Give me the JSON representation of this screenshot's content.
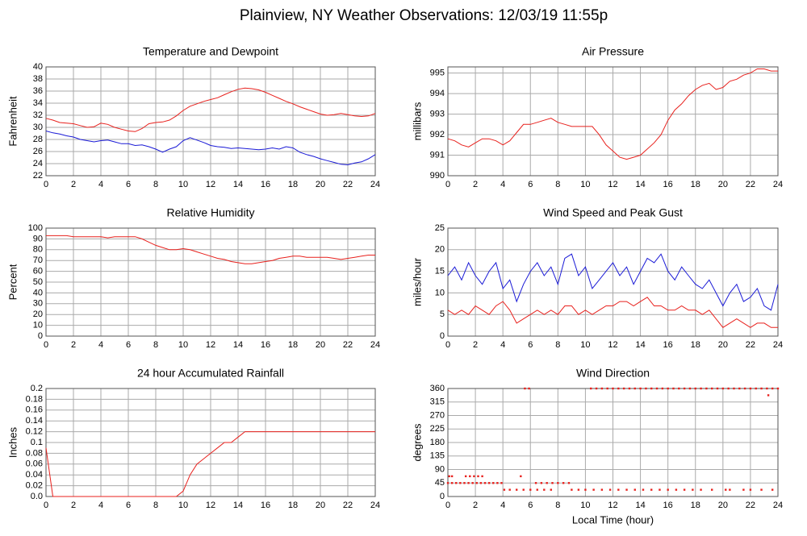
{
  "title": "Plainview, NY Weather Observations: 12/03/19 11:55p",
  "chart_data": [
    {
      "type": "line",
      "title": "Temperature and Dewpoint",
      "ylabel": "Fahrenheit",
      "xlim": [
        0,
        24
      ],
      "xticks": [
        0,
        2,
        4,
        6,
        8,
        10,
        12,
        14,
        16,
        18,
        20,
        22,
        24
      ],
      "ylim": [
        22,
        40
      ],
      "yticks": [
        22,
        24,
        26,
        28,
        30,
        32,
        34,
        36,
        38,
        40
      ],
      "grid": true,
      "x": [
        0,
        0.5,
        1,
        1.5,
        2,
        2.5,
        3,
        3.5,
        4,
        4.5,
        5,
        5.5,
        6,
        6.5,
        7,
        7.5,
        8,
        8.5,
        9,
        9.5,
        10,
        10.5,
        11,
        11.5,
        12,
        12.5,
        13,
        13.5,
        14,
        14.5,
        15,
        15.5,
        16,
        16.5,
        17,
        17.5,
        18,
        18.5,
        19,
        19.5,
        20,
        20.5,
        21,
        21.5,
        22,
        22.5,
        23,
        23.5,
        24
      ],
      "series": [
        {
          "name": "Temperature",
          "color": "#e8211d",
          "values": [
            31.5,
            31.2,
            30.8,
            30.7,
            30.6,
            30.3,
            30.0,
            30.1,
            30.7,
            30.5,
            30.0,
            29.7,
            29.4,
            29.3,
            29.8,
            30.6,
            30.8,
            30.9,
            31.2,
            31.9,
            32.8,
            33.5,
            33.9,
            34.3,
            34.6,
            34.9,
            35.4,
            35.9,
            36.3,
            36.5,
            36.4,
            36.2,
            35.8,
            35.3,
            34.8,
            34.3,
            33.9,
            33.4,
            33.0,
            32.6,
            32.2,
            32.0,
            32.1,
            32.3,
            32.1,
            31.9,
            31.8,
            31.9,
            32.3
          ]
        },
        {
          "name": "Dewpoint",
          "color": "#1a1ad6",
          "values": [
            29.4,
            29.1,
            28.9,
            28.6,
            28.4,
            28.0,
            27.8,
            27.6,
            27.8,
            27.9,
            27.6,
            27.3,
            27.3,
            27.0,
            27.1,
            26.8,
            26.4,
            25.9,
            26.4,
            26.8,
            27.8,
            28.3,
            27.9,
            27.5,
            27.0,
            26.8,
            26.7,
            26.5,
            26.6,
            26.5,
            26.4,
            26.3,
            26.4,
            26.6,
            26.4,
            26.8,
            26.6,
            25.9,
            25.5,
            25.2,
            24.8,
            24.5,
            24.2,
            23.9,
            23.8,
            24.1,
            24.3,
            24.8,
            25.5
          ]
        }
      ]
    },
    {
      "type": "line",
      "title": "Air Pressure",
      "ylabel": "millibars",
      "xlim": [
        0,
        24
      ],
      "xticks": [
        0,
        2,
        4,
        6,
        8,
        10,
        12,
        14,
        16,
        18,
        20,
        22,
        24
      ],
      "ylim": [
        990,
        995.3
      ],
      "yticks": [
        990,
        991,
        992,
        993,
        994,
        995
      ],
      "grid": true,
      "x": [
        0,
        0.5,
        1,
        1.5,
        2,
        2.5,
        3,
        3.5,
        4,
        4.5,
        5,
        5.5,
        6,
        6.5,
        7,
        7.5,
        8,
        8.5,
        9,
        9.5,
        10,
        10.5,
        11,
        11.5,
        12,
        12.5,
        13,
        13.5,
        14,
        14.5,
        15,
        15.5,
        16,
        16.5,
        17,
        17.5,
        18,
        18.5,
        19,
        19.5,
        20,
        20.5,
        21,
        21.5,
        22,
        22.5,
        23,
        23.5,
        24
      ],
      "series": [
        {
          "name": "Pressure",
          "color": "#e8211d",
          "values": [
            991.8,
            991.7,
            991.5,
            991.4,
            991.6,
            991.8,
            991.8,
            991.7,
            991.5,
            991.7,
            992.1,
            992.5,
            992.5,
            992.6,
            992.7,
            992.8,
            992.6,
            992.5,
            992.4,
            992.4,
            992.4,
            992.4,
            992.0,
            991.5,
            991.2,
            990.9,
            990.8,
            990.9,
            991.0,
            991.3,
            991.6,
            992.0,
            992.7,
            993.2,
            993.5,
            993.9,
            994.2,
            994.4,
            994.5,
            994.2,
            994.3,
            994.6,
            994.7,
            994.9,
            995.0,
            995.2,
            995.2,
            995.1,
            995.1
          ]
        }
      ]
    },
    {
      "type": "line",
      "title": "Relative Humidity",
      "ylabel": "Percent",
      "xlim": [
        0,
        24
      ],
      "xticks": [
        0,
        2,
        4,
        6,
        8,
        10,
        12,
        14,
        16,
        18,
        20,
        22,
        24
      ],
      "ylim": [
        0,
        100
      ],
      "yticks": [
        0,
        10,
        20,
        30,
        40,
        50,
        60,
        70,
        80,
        90,
        100
      ],
      "grid": true,
      "x": [
        0,
        0.5,
        1,
        1.5,
        2,
        2.5,
        3,
        3.5,
        4,
        4.5,
        5,
        5.5,
        6,
        6.5,
        7,
        7.5,
        8,
        8.5,
        9,
        9.5,
        10,
        10.5,
        11,
        11.5,
        12,
        12.5,
        13,
        13.5,
        14,
        14.5,
        15,
        15.5,
        16,
        16.5,
        17,
        17.5,
        18,
        18.5,
        19,
        19.5,
        20,
        20.5,
        21,
        21.5,
        22,
        22.5,
        23,
        23.5,
        24
      ],
      "series": [
        {
          "name": "Humidity",
          "color": "#e8211d",
          "values": [
            93,
            93,
            93,
            93,
            92,
            92,
            92,
            92,
            92,
            91,
            92,
            92,
            92,
            92,
            90,
            87,
            84,
            82,
            80,
            80,
            81,
            80,
            78,
            76,
            74,
            72,
            71,
            69,
            68,
            67,
            67,
            68,
            69,
            70,
            72,
            73,
            74,
            74,
            73,
            73,
            73,
            73,
            72,
            71,
            72,
            73,
            74,
            75,
            75
          ]
        }
      ]
    },
    {
      "type": "line",
      "title": "Wind Speed and Peak Gust",
      "ylabel": "miles/hour",
      "xlim": [
        0,
        24
      ],
      "xticks": [
        0,
        2,
        4,
        6,
        8,
        10,
        12,
        14,
        16,
        18,
        20,
        22,
        24
      ],
      "ylim": [
        0,
        25
      ],
      "yticks": [
        0,
        5,
        10,
        15,
        20,
        25
      ],
      "grid": true,
      "x": [
        0,
        0.5,
        1,
        1.5,
        2,
        2.5,
        3,
        3.5,
        4,
        4.5,
        5,
        5.5,
        6,
        6.5,
        7,
        7.5,
        8,
        8.5,
        9,
        9.5,
        10,
        10.5,
        11,
        11.5,
        12,
        12.5,
        13,
        13.5,
        14,
        14.5,
        15,
        15.5,
        16,
        16.5,
        17,
        17.5,
        18,
        18.5,
        19,
        19.5,
        20,
        20.5,
        21,
        21.5,
        22,
        22.5,
        23,
        23.5,
        24
      ],
      "series": [
        {
          "name": "Peak Gust",
          "color": "#1a1ad6",
          "values": [
            14,
            16,
            13,
            17,
            14,
            12,
            15,
            17,
            11,
            13,
            8,
            12,
            15,
            17,
            14,
            16,
            12,
            18,
            19,
            14,
            16,
            11,
            13,
            15,
            17,
            14,
            16,
            12,
            15,
            18,
            17,
            19,
            15,
            13,
            16,
            14,
            12,
            11,
            13,
            10,
            7,
            10,
            12,
            8,
            9,
            11,
            7,
            6,
            12
          ]
        },
        {
          "name": "Wind Speed",
          "color": "#e8211d",
          "values": [
            6,
            5,
            6,
            5,
            7,
            6,
            5,
            7,
            8,
            6,
            3,
            4,
            5,
            6,
            5,
            6,
            5,
            7,
            7,
            5,
            6,
            5,
            6,
            7,
            7,
            8,
            8,
            7,
            8,
            9,
            7,
            7,
            6,
            6,
            7,
            6,
            6,
            5,
            6,
            4,
            2,
            3,
            4,
            3,
            2,
            3,
            3,
            2,
            2
          ]
        }
      ]
    },
    {
      "type": "line",
      "title": "24 hour Accumulated Rainfall",
      "ylabel": "Inches",
      "xlim": [
        0,
        24
      ],
      "xticks": [
        0,
        2,
        4,
        6,
        8,
        10,
        12,
        14,
        16,
        18,
        20,
        22,
        24
      ],
      "ylim": [
        0,
        0.2
      ],
      "yticks": [
        {
          "value": 0,
          "label": "0.0"
        },
        0.02,
        0.04,
        0.06,
        0.08,
        0.1,
        0.12,
        0.14,
        0.16,
        0.18,
        0.2
      ],
      "grid": true,
      "x": [
        0,
        0.5,
        1,
        1.5,
        2,
        2.5,
        3,
        3.5,
        4,
        4.5,
        5,
        5.5,
        6,
        6.5,
        7,
        7.5,
        8,
        8.5,
        9,
        9.5,
        10,
        10.5,
        11,
        11.5,
        12,
        12.5,
        13,
        13.5,
        14,
        14.5,
        15,
        15.5,
        16,
        16.5,
        17,
        17.5,
        18,
        18.5,
        19,
        19.5,
        20,
        20.5,
        21,
        21.5,
        22,
        22.5,
        23,
        23.5,
        24
      ],
      "series": [
        {
          "name": "Rainfall",
          "color": "#e8211d",
          "values": [
            0.09,
            0,
            0,
            0,
            0,
            0,
            0,
            0,
            0,
            0,
            0,
            0,
            0,
            0,
            0,
            0,
            0,
            0,
            0,
            0,
            0.01,
            0.04,
            0.06,
            0.07,
            0.08,
            0.09,
            0.1,
            0.1,
            0.11,
            0.12,
            0.12,
            0.12,
            0.12,
            0.12,
            0.12,
            0.12,
            0.12,
            0.12,
            0.12,
            0.12,
            0.12,
            0.12,
            0.12,
            0.12,
            0.12,
            0.12,
            0.12,
            0.12,
            0.12
          ]
        }
      ]
    },
    {
      "type": "scatter",
      "title": "Wind Direction",
      "ylabel": "degrees",
      "xlabel": "Local Time (hour)",
      "xlim": [
        0,
        24
      ],
      "xticks": [
        0,
        2,
        4,
        6,
        8,
        10,
        12,
        14,
        16,
        18,
        20,
        22,
        24
      ],
      "ylim": [
        0,
        360
      ],
      "yticks": [
        0,
        45,
        90,
        135,
        180,
        225,
        270,
        315,
        360
      ],
      "grid": true,
      "x": [
        0,
        0.3,
        0.6,
        0.9,
        1.2,
        1.5,
        1.8,
        2.1,
        2.4,
        2.7,
        3.0,
        3.3,
        3.6,
        3.9,
        0.1,
        0.3,
        1.3,
        1.6,
        1.9,
        2.2,
        2.5,
        5.3,
        4.1,
        4.5,
        5,
        5.5,
        6,
        6.5,
        7,
        7.5,
        5.6,
        5.9,
        6.4,
        6.8,
        7.2,
        7.6,
        8,
        8.4,
        8.8,
        9,
        9.5,
        10,
        10.6,
        11.2,
        11.8,
        12.4,
        13,
        13.6,
        14.2,
        14.8,
        15.4,
        16,
        16.6,
        17.2,
        17.8,
        18.4,
        19.2,
        20.2,
        20.5,
        21.5,
        22,
        22.8,
        23.6,
        10.4,
        10.8,
        11.2,
        11.6,
        12,
        12.4,
        12.8,
        13.2,
        13.6,
        14,
        14.4,
        14.8,
        15.2,
        15.6,
        16,
        16.4,
        16.8,
        17.2,
        17.6,
        18,
        18.4,
        18.8,
        19.2,
        19.6,
        20,
        20.4,
        20.8,
        21.2,
        21.6,
        22,
        22.4,
        22.8,
        23.2,
        23.6,
        24,
        23.3
      ],
      "series": [
        {
          "name": "Direction",
          "color": "#e8211d",
          "values": [
            45,
            45,
            45,
            45,
            45,
            45,
            45,
            45,
            45,
            45,
            45,
            45,
            45,
            45,
            67.5,
            67.5,
            67.5,
            67.5,
            67.5,
            67.5,
            67.5,
            67.5,
            22.5,
            22.5,
            22.5,
            22.5,
            22.5,
            22.5,
            22.5,
            22.5,
            360,
            360,
            45,
            45,
            45,
            45,
            45,
            45,
            45,
            22.5,
            22.5,
            22.5,
            22.5,
            22.5,
            22.5,
            22.5,
            22.5,
            22.5,
            22.5,
            22.5,
            22.5,
            22.5,
            22.5,
            22.5,
            22.5,
            22.5,
            22.5,
            22.5,
            22.5,
            22.5,
            22.5,
            22.5,
            22.5,
            360,
            360,
            360,
            360,
            360,
            360,
            360,
            360,
            360,
            360,
            360,
            360,
            360,
            360,
            360,
            360,
            360,
            360,
            360,
            360,
            360,
            360,
            360,
            360,
            360,
            360,
            360,
            360,
            360,
            360,
            360,
            360,
            360,
            360,
            360,
            337.5
          ]
        }
      ]
    }
  ]
}
